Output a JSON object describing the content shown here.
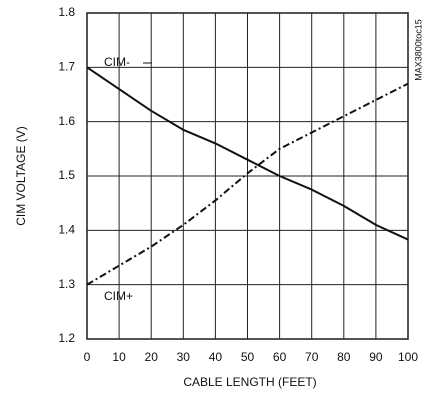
{
  "chart_data": {
    "type": "line",
    "xlabel": "CABLE LENGTH (FEET)",
    "ylabel": "CIM VOLTAGE (V)",
    "annotation": "MAX3800toc15",
    "x": [
      0,
      10,
      20,
      30,
      40,
      50,
      60,
      70,
      80,
      90,
      100
    ],
    "series": [
      {
        "name": "CIM-",
        "color": "#111111",
        "style": "solid",
        "values": [
          1.7,
          1.66,
          1.62,
          1.585,
          1.56,
          1.53,
          1.5,
          1.475,
          1.445,
          1.41,
          1.383
        ]
      },
      {
        "name": "CIM+",
        "color": "#111111",
        "style": "dashdot",
        "values": [
          1.3,
          1.335,
          1.37,
          1.41,
          1.455,
          1.505,
          1.55,
          1.58,
          1.61,
          1.64,
          1.67
        ]
      }
    ],
    "xlim": [
      0,
      100
    ],
    "xticks": [
      0,
      10,
      20,
      30,
      40,
      50,
      60,
      70,
      80,
      90,
      100
    ],
    "ylim": [
      1.2,
      1.8
    ],
    "yticks": [
      1.2,
      1.3,
      1.4,
      1.5,
      1.6,
      1.7,
      1.8
    ],
    "grid": true
  }
}
